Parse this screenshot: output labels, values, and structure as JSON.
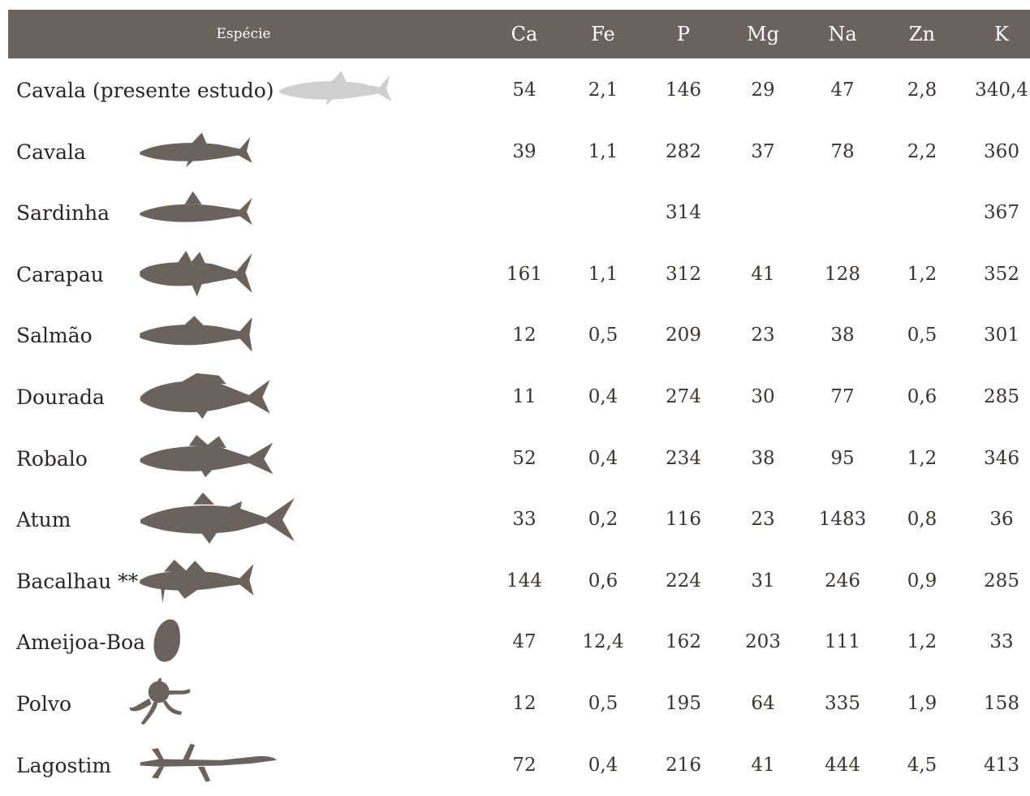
{
  "table": {
    "header_species": "Espécie",
    "columns": [
      "Ca",
      "Fe",
      "P",
      "Mg",
      "Na",
      "Zn",
      "K"
    ],
    "silhouette_color": "#6b625e",
    "highlight_color": "#cfcfcf",
    "rows": [
      {
        "name": "Cavala (presente estudo)",
        "icon": "mackerel-icon",
        "values": [
          "54",
          "2,1",
          "146",
          "29",
          "47",
          "2,8",
          "340,4"
        ]
      },
      {
        "name": "Cavala",
        "icon": "mackerel-icon",
        "values": [
          "39",
          "1,1",
          "282",
          "37",
          "78",
          "2,2",
          "360"
        ]
      },
      {
        "name": "Sardinha",
        "icon": "sardine-icon",
        "values": [
          "",
          "",
          "314",
          "",
          "",
          "",
          "367"
        ]
      },
      {
        "name": "Carapau",
        "icon": "horse-mackerel-icon",
        "values": [
          "161",
          "1,1",
          "312",
          "41",
          "128",
          "1,2",
          "352"
        ]
      },
      {
        "name": "Salmão",
        "icon": "salmon-icon",
        "values": [
          "12",
          "0,5",
          "209",
          "23",
          "38",
          "0,5",
          "301"
        ]
      },
      {
        "name": "Dourada",
        "icon": "sea-bream-icon",
        "values": [
          "11",
          "0,4",
          "274",
          "30",
          "77",
          "0,6",
          "285"
        ]
      },
      {
        "name": "Robalo",
        "icon": "sea-bass-icon",
        "values": [
          "52",
          "0,4",
          "234",
          "38",
          "95",
          "1,2",
          "346"
        ]
      },
      {
        "name": "Atum",
        "icon": "tuna-icon",
        "values": [
          "33",
          "0,2",
          "116",
          "23",
          "1483",
          "0,8",
          "36"
        ]
      },
      {
        "name": "Bacalhau **",
        "icon": "cod-icon",
        "values": [
          "144",
          "0,6",
          "224",
          "31",
          "246",
          "0,9",
          "285"
        ]
      },
      {
        "name": "Ameijoa-Boa",
        "icon": "clam-icon",
        "values": [
          "47",
          "12,4",
          "162",
          "203",
          "111",
          "1,2",
          "33"
        ]
      },
      {
        "name": "Polvo",
        "icon": "octopus-icon",
        "values": [
          "12",
          "0,5",
          "195",
          "64",
          "335",
          "1,9",
          "158"
        ]
      },
      {
        "name": "Lagostim",
        "icon": "langoustine-icon",
        "values": [
          "72",
          "0,4",
          "216",
          "41",
          "444",
          "4,5",
          "413"
        ]
      }
    ]
  }
}
